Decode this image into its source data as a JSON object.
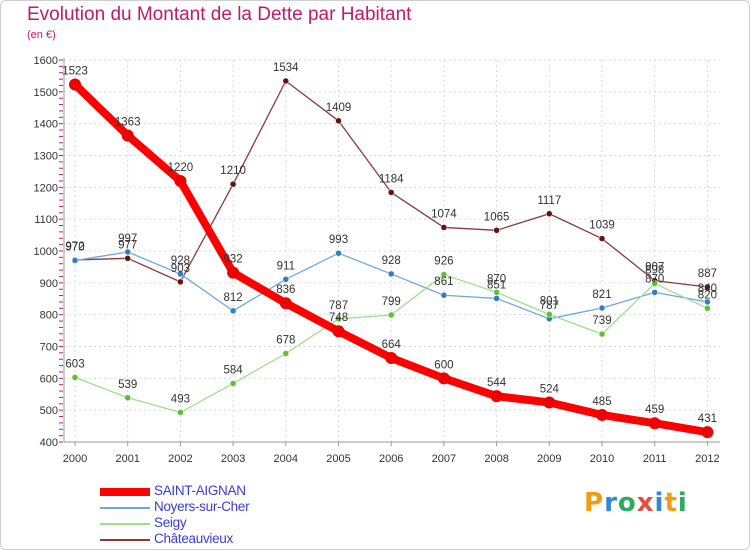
{
  "header": {
    "title": "Evolution du Montant de la Dette par Habitant",
    "subtitle": "(en €)"
  },
  "logo": {
    "letters": [
      "P",
      "r",
      "o",
      "x",
      "i",
      "t",
      "i"
    ],
    "colors": [
      "#f39c12",
      "#2e86de",
      "#27ae60",
      "#e74c3c",
      "#2e86de",
      "#f39c12",
      "#27ae60"
    ]
  },
  "chart_data": {
    "type": "line",
    "x": [
      "2000",
      "2001",
      "2002",
      "2003",
      "2004",
      "2005",
      "2006",
      "2007",
      "2008",
      "2009",
      "2010",
      "2011",
      "2012"
    ],
    "ylim": [
      400,
      1600
    ],
    "yticks": [
      400,
      500,
      600,
      700,
      800,
      900,
      1000,
      1100,
      1200,
      1300,
      1400,
      1500,
      1600
    ],
    "grid": true,
    "legend_position": "bottom-left",
    "series": [
      {
        "name": "SAINT-AIGNAN",
        "color": "#ff0000",
        "point_color": "#ee0000",
        "values": [
          1523,
          1363,
          1220,
          932,
          836,
          748,
          664,
          600,
          544,
          524,
          485,
          459,
          431
        ],
        "labels": [
          "1523",
          "1363",
          "1220",
          "932",
          "836",
          "748",
          "664",
          "600",
          "544",
          "524",
          "485",
          "459",
          "431"
        ]
      },
      {
        "name": "Noyers-sur-Cher",
        "color": "#6fa8dc",
        "point_color": "#2f7fc1",
        "values": [
          970,
          997,
          928,
          812,
          911,
          993,
          928,
          861,
          851,
          787,
          821,
          870,
          840
        ],
        "labels": [
          "970",
          "997",
          "928",
          "812",
          "911",
          "993",
          "928",
          "861",
          "851",
          "787",
          "821",
          "870",
          "840"
        ]
      },
      {
        "name": "Seigy",
        "color": "#9ee08a",
        "point_color": "#5bc234",
        "values": [
          603,
          539,
          493,
          584,
          678,
          787,
          799,
          926,
          870,
          801,
          739,
          898,
          820
        ],
        "labels": [
          "603",
          "539",
          "493",
          "584",
          "678",
          "787",
          "799",
          "926",
          "870",
          "801",
          "739",
          "898",
          "820"
        ]
      },
      {
        "name": "Châteauvieux",
        "color": "#8b3a3a",
        "point_color": "#6b1010",
        "values": [
          972,
          977,
          903,
          1210,
          1534,
          1409,
          1184,
          1074,
          1065,
          1117,
          1039,
          907,
          887
        ],
        "labels": [
          "972",
          "977",
          "903",
          "1210",
          "1534",
          "1409",
          "1184",
          "1074",
          "1065",
          "1117",
          "1039",
          "907",
          "887"
        ]
      }
    ]
  }
}
